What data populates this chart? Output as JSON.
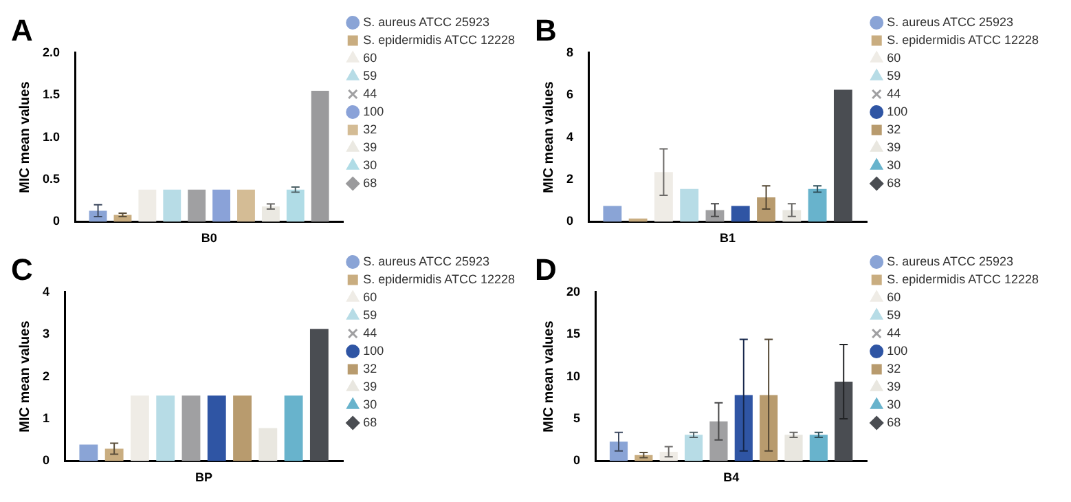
{
  "chart_data": [
    {
      "type": "bar",
      "title": "A",
      "ylabel": "MIC mean values",
      "categories": [
        "B0"
      ],
      "ylim": [
        0,
        2
      ],
      "yticks": [
        0,
        {
          "value": 0.5,
          "label": "0.5"
        },
        {
          "value": 1,
          "label": "1.0"
        },
        {
          "value": 1.5,
          "label": "1.5"
        },
        {
          "value": 2,
          "label": "2.0"
        }
      ],
      "grid": false,
      "legend": "right",
      "series": [
        {
          "name": "S. aureus ATCC 25923",
          "color": "#8aa4d6",
          "marker": "circle",
          "values": [
            0.13
          ],
          "errors": [
            0.07
          ]
        },
        {
          "name": "S. epidermidis ATCC 12228",
          "color": "#c9ad80",
          "marker": "square",
          "values": [
            0.08
          ],
          "errors": [
            0.02
          ]
        },
        {
          "name": "60",
          "color": "#efece6",
          "marker": "triangle",
          "values": [
            0.38
          ]
        },
        {
          "name": "59",
          "color": "#b7dce6",
          "marker": "triangle",
          "values": [
            0.38
          ]
        },
        {
          "name": "44",
          "color": "#a0a0a2",
          "marker": "cross",
          "values": [
            0.38
          ]
        },
        {
          "name": "100",
          "color": "#8aa2d8",
          "marker": "circle",
          "values": [
            0.38
          ]
        },
        {
          "name": "32",
          "color": "#d4bc95",
          "marker": "square",
          "values": [
            0.38
          ]
        },
        {
          "name": "39",
          "color": "#ebe9e2",
          "marker": "triangle",
          "values": [
            0.18
          ],
          "errors": [
            0.03
          ]
        },
        {
          "name": "30",
          "color": "#b0dce6",
          "marker": "triangle",
          "values": [
            0.38
          ],
          "errors": [
            0.03
          ]
        },
        {
          "name": "68",
          "color": "#9a9a9c",
          "marker": "diamond",
          "values": [
            1.55
          ]
        }
      ]
    },
    {
      "type": "bar",
      "title": "B",
      "ylabel": "MIC mean values",
      "categories": [
        "B1"
      ],
      "ylim": [
        0,
        8
      ],
      "yticks": [
        0,
        2,
        4,
        6,
        8
      ],
      "grid": false,
      "legend": "right",
      "series": [
        {
          "name": "S. aureus ATCC 25923",
          "color": "#8aa4d6",
          "marker": "circle",
          "values": [
            0.75
          ]
        },
        {
          "name": "S. epidermidis ATCC 12228",
          "color": "#c9ad80",
          "marker": "square",
          "values": [
            0.15
          ]
        },
        {
          "name": "60",
          "color": "#efece6",
          "marker": "triangle",
          "values": [
            2.35
          ],
          "errors": [
            1.1
          ]
        },
        {
          "name": "59",
          "color": "#b7dce6",
          "marker": "triangle",
          "values": [
            1.55
          ]
        },
        {
          "name": "44",
          "color": "#a0a0a2",
          "marker": "cross",
          "values": [
            0.55
          ],
          "errors": [
            0.3
          ]
        },
        {
          "name": "100",
          "color": "#2f55a4",
          "marker": "circle",
          "values": [
            0.75
          ]
        },
        {
          "name": "32",
          "color": "#b89b6e",
          "marker": "square",
          "values": [
            1.15
          ],
          "errors": [
            0.55
          ]
        },
        {
          "name": "39",
          "color": "#e9e7e0",
          "marker": "triangle",
          "values": [
            0.55
          ],
          "errors": [
            0.3
          ]
        },
        {
          "name": "30",
          "color": "#68b3cc",
          "marker": "triangle",
          "values": [
            1.55
          ],
          "errors": [
            0.15
          ]
        },
        {
          "name": "68",
          "color": "#4a4d52",
          "marker": "diamond",
          "values": [
            6.25
          ]
        }
      ]
    },
    {
      "type": "bar",
      "title": "C",
      "ylabel": "MIC mean values",
      "categories": [
        "BP"
      ],
      "ylim": [
        0,
        4
      ],
      "yticks": [
        0,
        1,
        2,
        3,
        4
      ],
      "grid": false,
      "legend": "right",
      "series": [
        {
          "name": "S. aureus ATCC 25923",
          "color": "#8aa4d6",
          "marker": "circle",
          "values": [
            0.39
          ]
        },
        {
          "name": "S. epidermidis ATCC 12228",
          "color": "#c9ad80",
          "marker": "square",
          "values": [
            0.29
          ],
          "errors": [
            0.13
          ]
        },
        {
          "name": "60",
          "color": "#efece6",
          "marker": "triangle",
          "values": [
            1.55
          ]
        },
        {
          "name": "59",
          "color": "#b7dce6",
          "marker": "triangle",
          "values": [
            1.55
          ]
        },
        {
          "name": "44",
          "color": "#a0a0a2",
          "marker": "cross",
          "values": [
            1.55
          ]
        },
        {
          "name": "100",
          "color": "#2f55a4",
          "marker": "circle",
          "values": [
            1.55
          ]
        },
        {
          "name": "32",
          "color": "#b89b6e",
          "marker": "square",
          "values": [
            1.55
          ]
        },
        {
          "name": "39",
          "color": "#e9e7e0",
          "marker": "triangle",
          "values": [
            0.78
          ]
        },
        {
          "name": "30",
          "color": "#68b3cc",
          "marker": "triangle",
          "values": [
            1.55
          ]
        },
        {
          "name": "68",
          "color": "#4a4d52",
          "marker": "diamond",
          "values": [
            3.13
          ]
        }
      ]
    },
    {
      "type": "bar",
      "title": "D",
      "ylabel": "MIC mean values",
      "categories": [
        "B4"
      ],
      "ylim": [
        0,
        20
      ],
      "yticks": [
        0,
        5,
        10,
        15,
        20
      ],
      "grid": false,
      "legend": "right",
      "series": [
        {
          "name": "S. aureus ATCC 25923",
          "color": "#8aa4d6",
          "marker": "circle",
          "values": [
            2.3
          ],
          "errors": [
            1.1
          ]
        },
        {
          "name": "S. epidermidis ATCC 12228",
          "color": "#c9ad80",
          "marker": "square",
          "values": [
            0.7
          ],
          "errors": [
            0.3
          ]
        },
        {
          "name": "60",
          "color": "#efece6",
          "marker": "triangle",
          "values": [
            1.1
          ],
          "errors": [
            0.6
          ]
        },
        {
          "name": "59",
          "color": "#b7dce6",
          "marker": "triangle",
          "values": [
            3.1
          ],
          "errors": [
            0.3
          ]
        },
        {
          "name": "44",
          "color": "#a0a0a2",
          "marker": "cross",
          "values": [
            4.7
          ],
          "errors": [
            2.2
          ]
        },
        {
          "name": "100",
          "color": "#2f55a4",
          "marker": "circle",
          "values": [
            7.8
          ],
          "errors": [
            6.6
          ]
        },
        {
          "name": "32",
          "color": "#b89b6e",
          "marker": "square",
          "values": [
            7.8
          ],
          "errors": [
            6.6
          ]
        },
        {
          "name": "39",
          "color": "#e9e7e0",
          "marker": "triangle",
          "values": [
            3.1
          ],
          "errors": [
            0.3
          ]
        },
        {
          "name": "30",
          "color": "#68b3cc",
          "marker": "triangle",
          "values": [
            3.1
          ],
          "errors": [
            0.3
          ]
        },
        {
          "name": "68",
          "color": "#4a4d52",
          "marker": "diamond",
          "values": [
            9.4
          ],
          "errors": [
            4.4
          ]
        }
      ]
    }
  ]
}
